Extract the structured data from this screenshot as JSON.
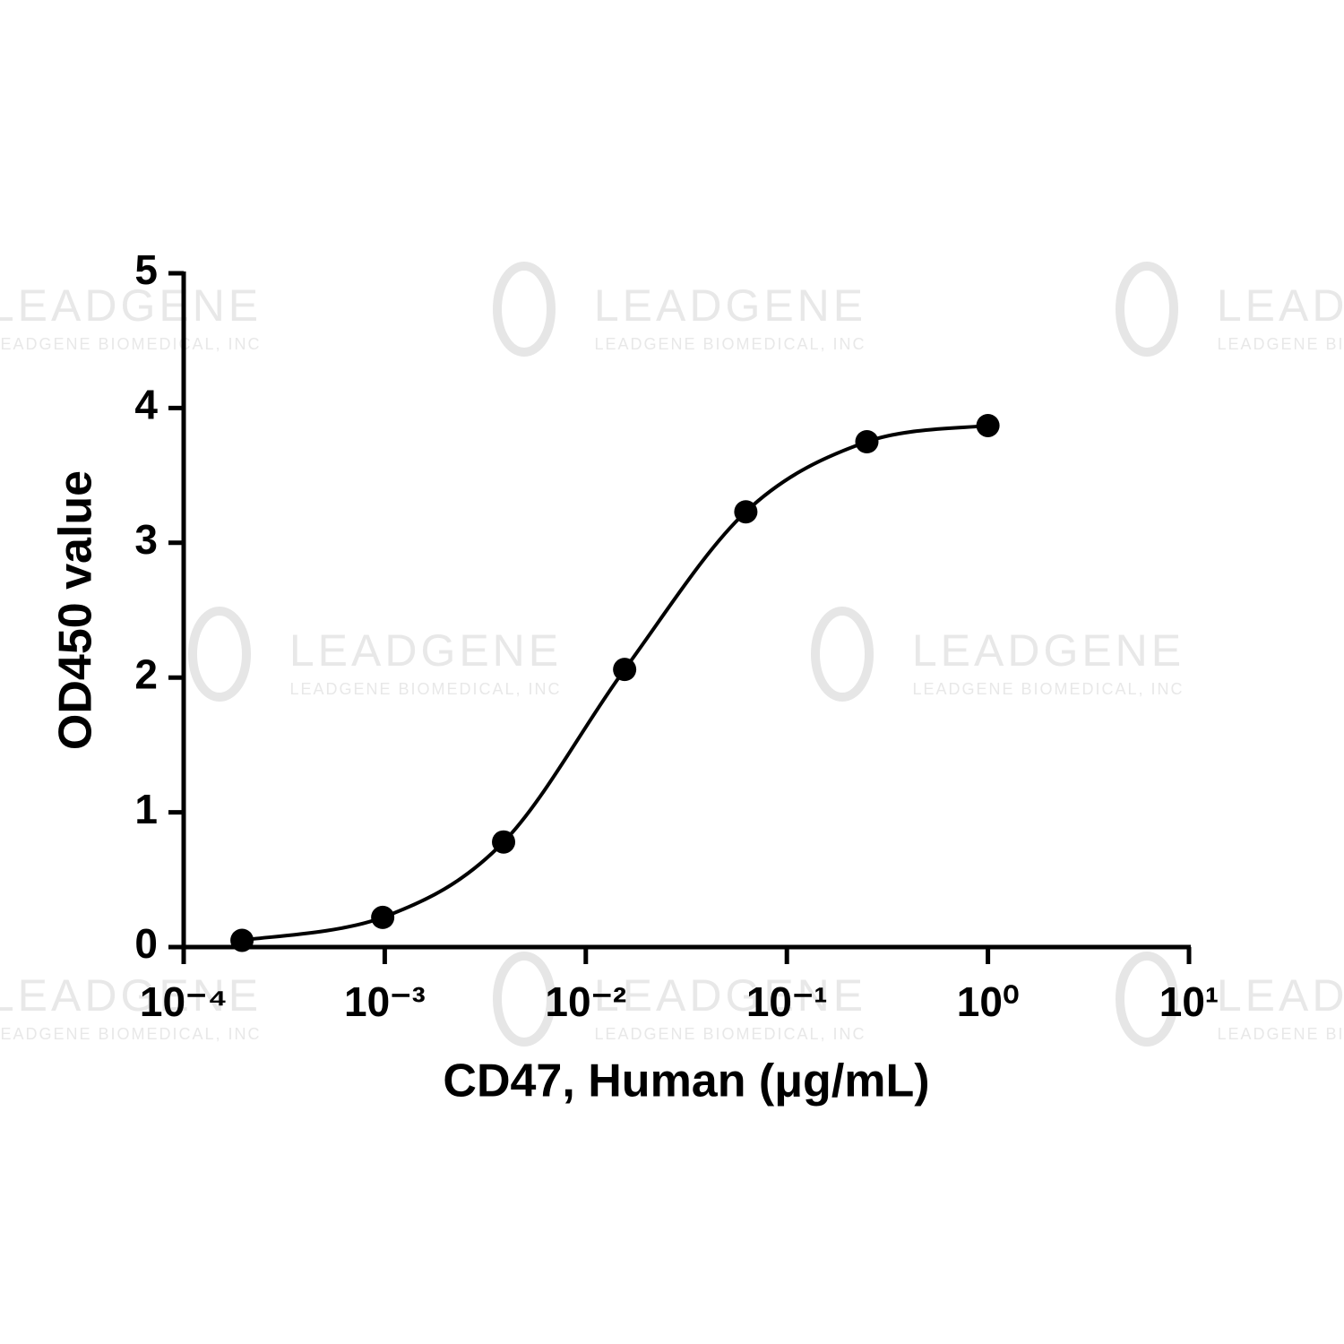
{
  "chart_data": {
    "type": "scatter",
    "xlabel": "CD47, Human (μg/mL)",
    "ylabel": "OD450 value",
    "watermark": "LEADGENE",
    "watermark_sub": "LEADGENE BIOMEDICAL, INC",
    "xscale": "log",
    "x": [
      0.000195,
      0.000977,
      0.0039,
      0.0156,
      0.0625,
      0.25,
      1
    ],
    "series": [
      {
        "color": "#000000",
        "values": [
          0.05,
          0.22,
          0.78,
          2.06,
          3.23,
          3.75,
          3.87
        ]
      }
    ],
    "xlim": [
      0.0001,
      10
    ],
    "xticks": [
      {
        "value": 0.0001,
        "label": "10⁻⁴"
      },
      {
        "value": 0.001,
        "label": "10⁻³"
      },
      {
        "value": 0.01,
        "label": "10⁻²"
      },
      {
        "value": 0.1,
        "label": "10⁻¹"
      },
      {
        "value": 1,
        "label": "10⁰"
      },
      {
        "value": 10,
        "label": "10¹"
      }
    ],
    "ylim": [
      0,
      5
    ],
    "yticks": [
      0,
      1,
      2,
      3,
      4,
      5
    ]
  }
}
